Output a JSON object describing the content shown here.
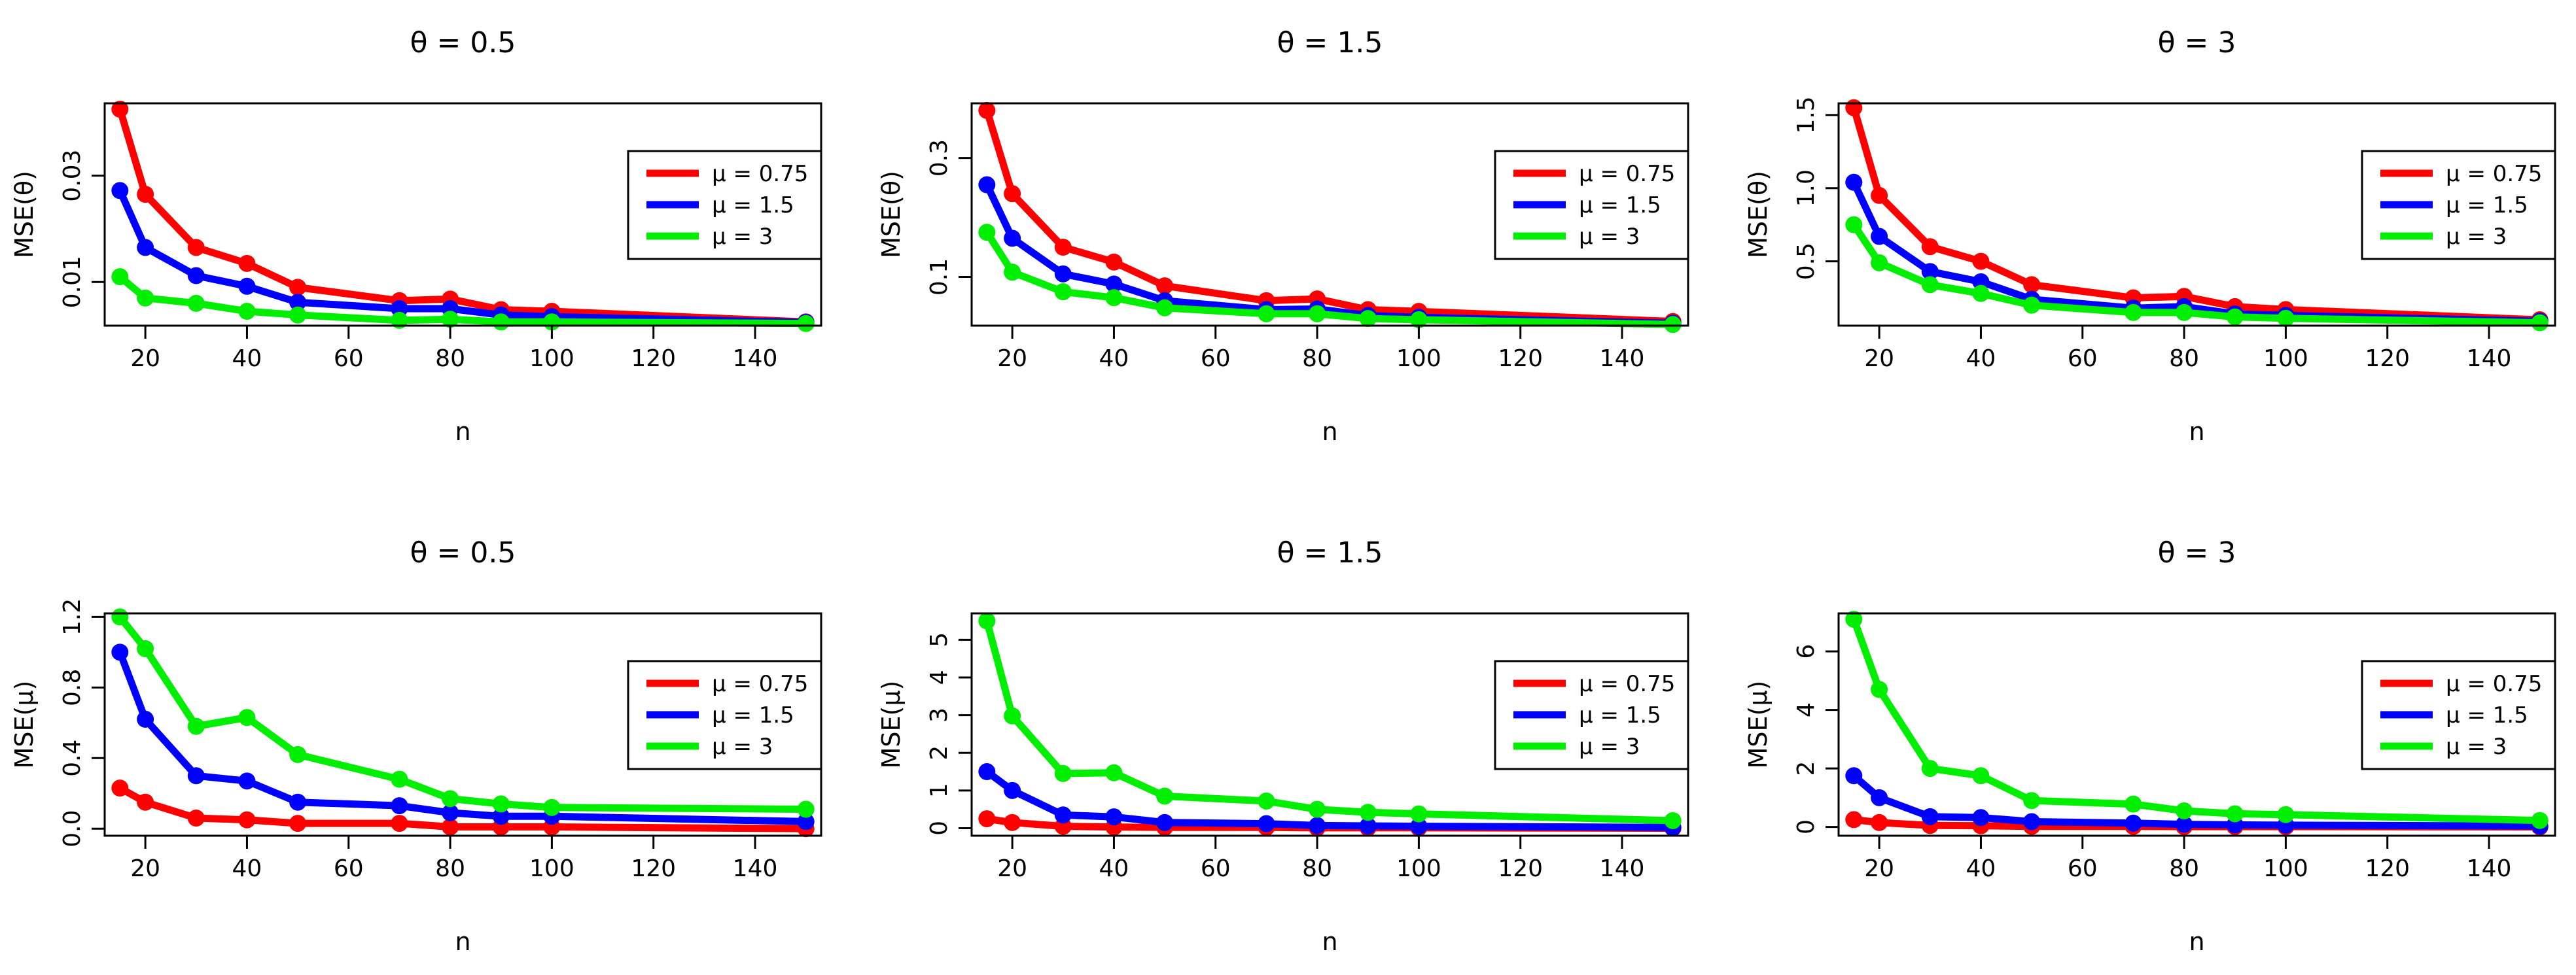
{
  "chart_data": [
    {
      "type": "line",
      "title": "θ = 0.5",
      "xlabel": "n",
      "ylabel": "MSE(θ)",
      "xlim": [
        12,
        153
      ],
      "ylim": [
        0.0018,
        0.0436
      ],
      "xticks": [
        20,
        40,
        60,
        80,
        100,
        120,
        140
      ],
      "xtick_labels": [
        "20",
        "40",
        "60",
        "80",
        "100",
        "120",
        "140"
      ],
      "yticks": [
        0.01,
        0.03
      ],
      "ytick_labels": [
        "0.01",
        "0.03"
      ],
      "x": [
        15,
        20,
        30,
        40,
        50,
        70,
        80,
        90,
        100,
        150
      ],
      "series": [
        {
          "name": "μ = 0.75",
          "color": "#ff0000",
          "values": [
            0.0425,
            0.0265,
            0.0165,
            0.0135,
            0.009,
            0.0065,
            0.0068,
            0.0048,
            0.0045,
            0.0025
          ]
        },
        {
          "name": "μ = 1.5",
          "color": "#0000ff",
          "values": [
            0.0272,
            0.0165,
            0.0112,
            0.0092,
            0.0062,
            0.005,
            0.005,
            0.0038,
            0.0035,
            0.0024
          ]
        },
        {
          "name": "μ = 3",
          "color": "#00ee00",
          "values": [
            0.011,
            0.007,
            0.006,
            0.0045,
            0.0038,
            0.0028,
            0.003,
            0.0025,
            0.0025,
            0.0022
          ]
        }
      ],
      "legend_position": "right"
    },
    {
      "type": "line",
      "title": "θ = 1.5",
      "xlabel": "n",
      "ylabel": "MSE(θ)",
      "xlim": [
        12,
        153
      ],
      "ylim": [
        0.018,
        0.392
      ],
      "xticks": [
        20,
        40,
        60,
        80,
        100,
        120,
        140
      ],
      "xtick_labels": [
        "20",
        "40",
        "60",
        "80",
        "100",
        "120",
        "140"
      ],
      "yticks": [
        0.1,
        0.3
      ],
      "ytick_labels": [
        "0.1",
        "0.3"
      ],
      "x": [
        15,
        20,
        30,
        40,
        50,
        70,
        80,
        90,
        100,
        150
      ],
      "series": [
        {
          "name": "μ = 0.75",
          "color": "#ff0000",
          "values": [
            0.38,
            0.24,
            0.15,
            0.125,
            0.085,
            0.06,
            0.063,
            0.045,
            0.042,
            0.025
          ]
        },
        {
          "name": "μ = 1.5",
          "color": "#0000ff",
          "values": [
            0.255,
            0.165,
            0.105,
            0.088,
            0.06,
            0.045,
            0.046,
            0.035,
            0.032,
            0.022
          ]
        },
        {
          "name": "μ = 3",
          "color": "#00ee00",
          "values": [
            0.175,
            0.108,
            0.075,
            0.065,
            0.048,
            0.038,
            0.038,
            0.03,
            0.028,
            0.02
          ]
        }
      ],
      "legend_position": "right"
    },
    {
      "type": "line",
      "title": "θ = 3",
      "xlabel": "n",
      "ylabel": "MSE(θ)",
      "xlim": [
        12,
        153
      ],
      "ylim": [
        0.06,
        1.58
      ],
      "xticks": [
        20,
        40,
        60,
        80,
        100,
        120,
        140
      ],
      "xtick_labels": [
        "20",
        "40",
        "60",
        "80",
        "100",
        "120",
        "140"
      ],
      "yticks": [
        0.5,
        1.0,
        1.5
      ],
      "ytick_labels": [
        "0.5",
        "1.0",
        "1.5"
      ],
      "x": [
        15,
        20,
        30,
        40,
        50,
        70,
        80,
        90,
        100,
        150
      ],
      "series": [
        {
          "name": "μ = 0.75",
          "color": "#ff0000",
          "values": [
            1.55,
            0.95,
            0.6,
            0.5,
            0.34,
            0.25,
            0.26,
            0.19,
            0.17,
            0.1
          ]
        },
        {
          "name": "μ = 1.5",
          "color": "#0000ff",
          "values": [
            1.04,
            0.67,
            0.43,
            0.36,
            0.24,
            0.18,
            0.19,
            0.14,
            0.13,
            0.09
          ]
        },
        {
          "name": "μ = 3",
          "color": "#00ee00",
          "values": [
            0.75,
            0.49,
            0.34,
            0.28,
            0.2,
            0.15,
            0.15,
            0.12,
            0.11,
            0.08
          ]
        }
      ],
      "legend_position": "right"
    },
    {
      "type": "line",
      "title": "θ = 0.5",
      "xlabel": "n",
      "ylabel": "MSE(μ)",
      "xlim": [
        12,
        153
      ],
      "ylim": [
        -0.04,
        1.22
      ],
      "xticks": [
        20,
        40,
        60,
        80,
        100,
        120,
        140
      ],
      "xtick_labels": [
        "20",
        "40",
        "60",
        "80",
        "100",
        "120",
        "140"
      ],
      "yticks": [
        0.0,
        0.4,
        0.8,
        1.2
      ],
      "ytick_labels": [
        "0.0",
        "0.4",
        "0.8",
        "1.2"
      ],
      "x": [
        15,
        20,
        30,
        40,
        50,
        70,
        80,
        90,
        100,
        150
      ],
      "series": [
        {
          "name": "μ = 0.75",
          "color": "#ff0000",
          "values": [
            0.23,
            0.15,
            0.06,
            0.05,
            0.03,
            0.03,
            0.01,
            0.01,
            0.01,
            0.0
          ]
        },
        {
          "name": "μ = 1.5",
          "color": "#0000ff",
          "values": [
            1.0,
            0.62,
            0.3,
            0.27,
            0.15,
            0.13,
            0.09,
            0.07,
            0.07,
            0.04
          ]
        },
        {
          "name": "μ = 3",
          "color": "#00ee00",
          "values": [
            1.2,
            1.02,
            0.58,
            0.63,
            0.42,
            0.28,
            0.17,
            0.14,
            0.12,
            0.11
          ]
        }
      ],
      "legend_position": "right"
    },
    {
      "type": "line",
      "title": "θ = 1.5",
      "xlabel": "n",
      "ylabel": "MSE(μ)",
      "xlim": [
        12,
        153
      ],
      "ylim": [
        -0.2,
        5.7
      ],
      "xticks": [
        20,
        40,
        60,
        80,
        100,
        120,
        140
      ],
      "xtick_labels": [
        "20",
        "40",
        "60",
        "80",
        "100",
        "120",
        "140"
      ],
      "yticks": [
        0,
        1,
        2,
        3,
        4,
        5
      ],
      "ytick_labels": [
        "0",
        "1",
        "2",
        "3",
        "4",
        "5"
      ],
      "x": [
        15,
        20,
        30,
        40,
        50,
        70,
        80,
        90,
        100,
        150
      ],
      "series": [
        {
          "name": "μ = 0.75",
          "color": "#ff0000",
          "values": [
            0.25,
            0.15,
            0.05,
            0.03,
            0.02,
            0.02,
            0.01,
            0.01,
            0.01,
            0.0
          ]
        },
        {
          "name": "μ = 1.5",
          "color": "#0000ff",
          "values": [
            1.5,
            1.0,
            0.35,
            0.3,
            0.15,
            0.12,
            0.07,
            0.06,
            0.05,
            0.02
          ]
        },
        {
          "name": "μ = 3",
          "color": "#00ee00",
          "values": [
            5.5,
            2.98,
            1.45,
            1.47,
            0.85,
            0.72,
            0.5,
            0.42,
            0.38,
            0.2
          ]
        }
      ],
      "legend_position": "right"
    },
    {
      "type": "line",
      "title": "θ = 3",
      "xlabel": "n",
      "ylabel": "MSE(μ)",
      "xlim": [
        12,
        153
      ],
      "ylim": [
        -0.3,
        7.3
      ],
      "xticks": [
        20,
        40,
        60,
        80,
        100,
        120,
        140
      ],
      "xtick_labels": [
        "20",
        "40",
        "60",
        "80",
        "100",
        "120",
        "140"
      ],
      "yticks": [
        0,
        2,
        4,
        6
      ],
      "ytick_labels": [
        "0",
        "2",
        "4",
        "6"
      ],
      "x": [
        15,
        20,
        30,
        40,
        50,
        70,
        80,
        90,
        100,
        150
      ],
      "series": [
        {
          "name": "μ = 0.75",
          "color": "#ff0000",
          "values": [
            0.25,
            0.15,
            0.05,
            0.04,
            0.02,
            0.02,
            0.01,
            0.01,
            0.01,
            0.0
          ]
        },
        {
          "name": "μ = 1.5",
          "color": "#0000ff",
          "values": [
            1.75,
            1.0,
            0.35,
            0.32,
            0.18,
            0.13,
            0.09,
            0.07,
            0.06,
            0.03
          ]
        },
        {
          "name": "μ = 3",
          "color": "#00ee00",
          "values": [
            7.1,
            4.7,
            2.0,
            1.75,
            0.9,
            0.78,
            0.55,
            0.45,
            0.42,
            0.22
          ]
        }
      ],
      "legend_position": "right"
    }
  ]
}
